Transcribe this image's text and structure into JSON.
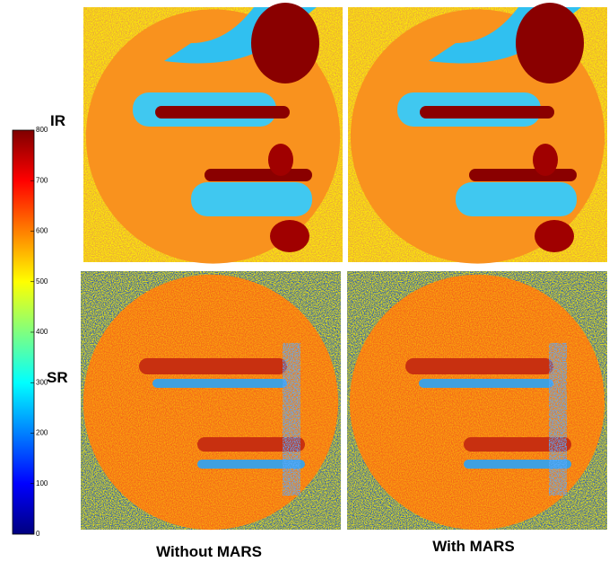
{
  "colorbar": {
    "lim": [
      0,
      800
    ],
    "ticks": [
      0,
      100,
      200,
      300,
      400,
      500,
      600,
      700,
      800
    ]
  },
  "row_labels": [
    "IR",
    "SR"
  ],
  "column_labels": [
    "Without MARS",
    "With MARS"
  ]
}
